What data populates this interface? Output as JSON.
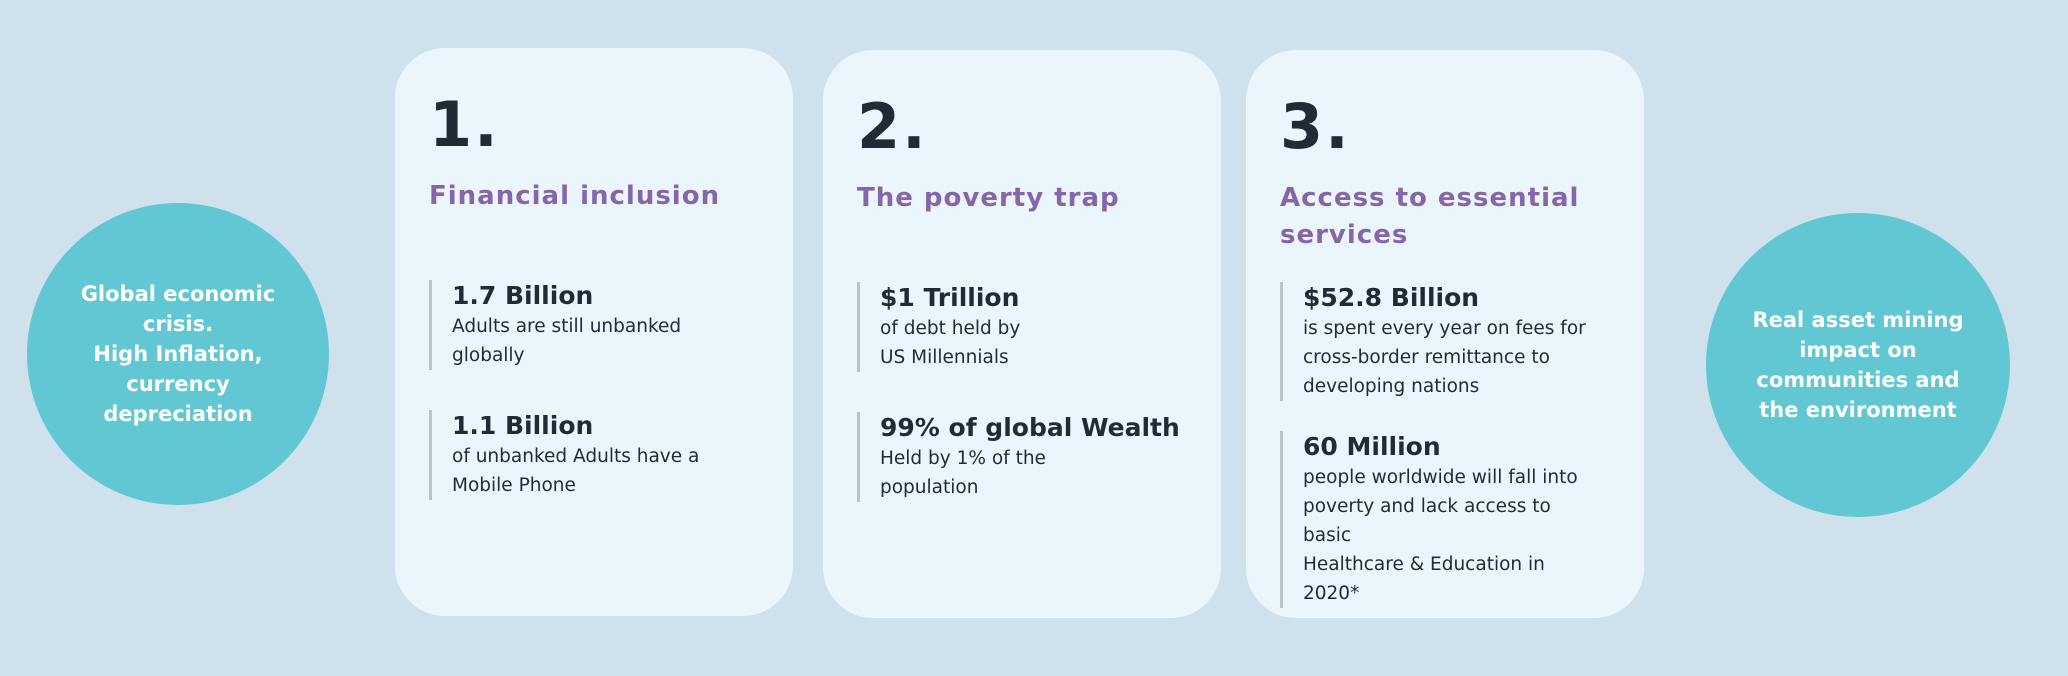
{
  "left_circle": {
    "text": "Global economic crisis.\nHigh Inflation, currency depreciation"
  },
  "right_circle": {
    "text": "Real asset  mining impact on communities and the environment"
  },
  "cards": [
    {
      "number": "1.",
      "title": "Financial inclusion",
      "stats": [
        {
          "value": "1.7 Billion",
          "desc": "Adults are still unbanked\nglobally"
        },
        {
          "value": "1.1 Billion",
          "desc": "of unbanked Adults have a\nMobile Phone"
        }
      ]
    },
    {
      "number": "2.",
      "title": "The poverty trap",
      "stats": [
        {
          "value": "$1 Trillion",
          "desc": "of debt held by\nUS Millennials"
        },
        {
          "value": "99% of global Wealth",
          "desc": "Held by 1% of the\npopulation"
        }
      ]
    },
    {
      "number": "3.",
      "title": "Access to essential\nservices",
      "stats": [
        {
          "value": "$52.8 Billion",
          "desc": "is spent every year on fees for\ncross-border remittance to\ndeveloping nations"
        },
        {
          "value": "60 Million",
          "desc": "people worldwide will fall into\npoverty and lack access to basic\nHealthcare & Education in 2020*"
        }
      ]
    }
  ],
  "colors": {
    "background": "#cfe1ec",
    "circle": "#61c8d3",
    "card": "#eaf6fb",
    "heading": "#8665aa"
  }
}
